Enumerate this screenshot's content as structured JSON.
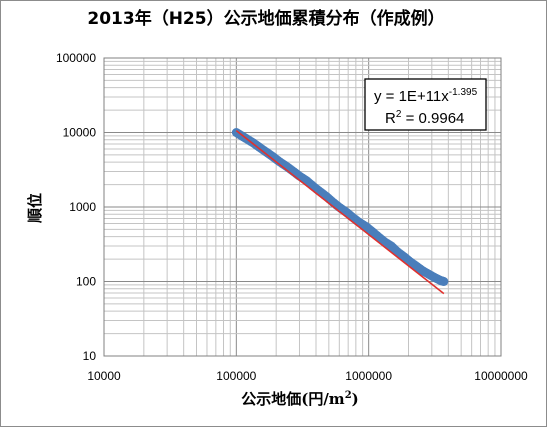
{
  "chart_data": {
    "type": "scatter",
    "title": "2013年（H25）公示地価累積分布（作成例）",
    "xlabel": "公示地価(円/m",
    "xlabel_sup": "2",
    "xlabel_close": ")",
    "ylabel": "順位",
    "x_scale": "log",
    "y_scale": "log",
    "xlim": [
      10000,
      10000000
    ],
    "ylim": [
      10,
      100000
    ],
    "x_ticks": [
      "10000",
      "100000",
      "1000000",
      "10000000"
    ],
    "y_ticks": [
      "10",
      "100",
      "1000",
      "10000",
      "100000"
    ],
    "grid": true,
    "series": [
      {
        "marker_color": "#4a7ebb",
        "points": [
          [
            100000,
            10000
          ],
          [
            110000,
            9000
          ],
          [
            120000,
            8200
          ],
          [
            135000,
            7200
          ],
          [
            150000,
            6300
          ],
          [
            170000,
            5400
          ],
          [
            190000,
            4700
          ],
          [
            210000,
            4100
          ],
          [
            240000,
            3500
          ],
          [
            270000,
            3000
          ],
          [
            300000,
            2600
          ],
          [
            340000,
            2250
          ],
          [
            380000,
            1900
          ],
          [
            430000,
            1600
          ],
          [
            480000,
            1380
          ],
          [
            540000,
            1150
          ],
          [
            600000,
            990
          ],
          [
            680000,
            850
          ],
          [
            760000,
            720
          ],
          [
            850000,
            620
          ],
          [
            950000,
            550
          ],
          [
            1060000,
            470
          ],
          [
            1180000,
            400
          ],
          [
            1320000,
            340
          ],
          [
            1480000,
            300
          ],
          [
            1650000,
            250
          ],
          [
            1850000,
            215
          ],
          [
            2050000,
            185
          ],
          [
            2300000,
            160
          ],
          [
            2550000,
            140
          ],
          [
            2850000,
            125
          ],
          [
            3150000,
            113
          ],
          [
            3500000,
            103
          ],
          [
            3700000,
            100
          ]
        ]
      }
    ],
    "trendline": {
      "color": "#e0312e",
      "coefficient": 100000000000,
      "exponent": -1.395,
      "x_range": [
        100000,
        3700000
      ]
    },
    "annotation": {
      "equation_base": "y = 1E+11x",
      "equation_exp": "-1.395",
      "r2_label": "R",
      "r2_sup": "2",
      "r2_value": " = 0.9964"
    }
  }
}
